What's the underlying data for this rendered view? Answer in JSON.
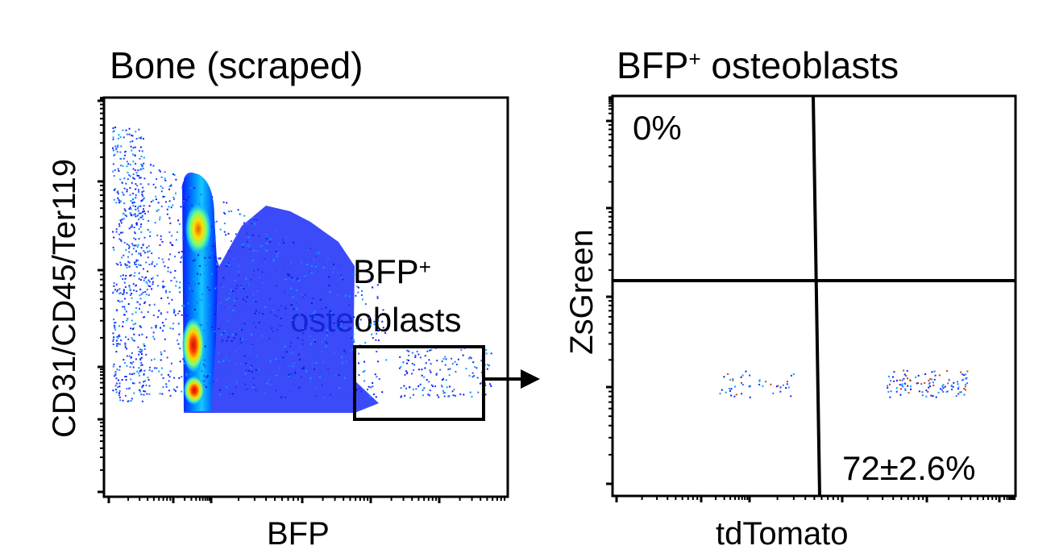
{
  "chart_data": [
    {
      "type": "scatter",
      "title": "Bone (scraped)",
      "xlabel": "BFP",
      "ylabel": "CD31/CD45/Ter119",
      "x_scale": "log",
      "y_scale": "log",
      "gate": {
        "label_main": "BFP",
        "label_sup": "+",
        "label_line2": "osteoblasts"
      },
      "populations": [
        {
          "name": "",
          "x": [
            0.02,
            0.1
          ],
          "y": [
            0.24,
            0.93
          ],
          "density": "very high"
        },
        {
          "name": "",
          "x": [
            0.1,
            0.7
          ],
          "y": [
            0.25,
            0.85
          ],
          "density": "medium"
        },
        {
          "name": "",
          "x": [
            0.73,
            0.96
          ],
          "y": [
            0.25,
            0.38
          ],
          "density": "low"
        }
      ]
    },
    {
      "type": "scatter",
      "title_main": "BFP",
      "title_sup": "+",
      "title_rest": " osteoblasts",
      "xlabel": "tdTomato",
      "ylabel": "ZsGreen",
      "x_scale": "log",
      "y_scale": "log",
      "quadrants": {
        "upper_left": "0%",
        "lower_right": "72±2.6%"
      },
      "populations": [
        {
          "name": "",
          "x": [
            0.25,
            0.45
          ],
          "y": [
            0.24,
            0.32
          ],
          "density": "low"
        },
        {
          "name": "",
          "x": [
            0.68,
            0.88
          ],
          "y": [
            0.24,
            0.32
          ],
          "density": "medium"
        }
      ]
    }
  ]
}
